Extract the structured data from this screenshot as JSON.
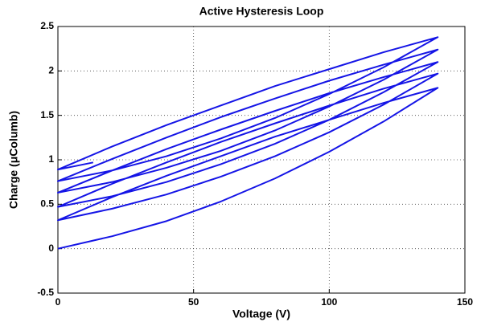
{
  "chart_data": {
    "type": "line",
    "title": "Active Hysteresis Loop",
    "x_label": "Voltage (V)",
    "y_label": "Charge (μColumb)",
    "x": [
      0,
      20,
      40,
      60,
      80,
      100,
      120,
      140,
      120,
      100,
      80,
      60,
      40,
      20,
      0,
      20,
      40,
      60,
      80,
      100,
      120,
      140,
      120,
      100,
      80,
      60,
      40,
      20,
      0,
      20,
      40,
      60,
      80,
      100,
      120,
      140,
      120,
      100,
      80,
      60,
      40,
      20,
      0,
      20,
      40,
      60,
      80,
      100,
      120,
      140,
      120,
      100,
      80,
      60,
      40,
      20,
      0,
      20,
      40,
      60,
      80,
      100,
      120,
      140,
      120,
      100,
      80,
      60,
      40,
      20,
      0,
      13
    ],
    "series": [
      {
        "name": "Charge",
        "color": "#1414e6",
        "values": [
          0,
          0.14,
          0.31,
          0.53,
          0.79,
          1.09,
          1.43,
          1.81,
          1.64,
          1.45,
          1.26,
          1.04,
          0.82,
          0.58,
          0.32,
          0.45,
          0.61,
          0.81,
          1.04,
          1.31,
          1.62,
          1.97,
          1.8,
          1.61,
          1.41,
          1.2,
          0.97,
          0.73,
          0.47,
          0.59,
          0.75,
          0.95,
          1.18,
          1.45,
          1.76,
          2.1,
          1.93,
          1.75,
          1.55,
          1.34,
          1.12,
          0.88,
          0.63,
          0.75,
          0.91,
          1.1,
          1.33,
          1.6,
          1.9,
          2.24,
          2.07,
          1.89,
          1.69,
          1.48,
          1.25,
          1.01,
          0.76,
          0.88,
          1.04,
          1.24,
          1.47,
          1.74,
          2.04,
          2.38,
          2.21,
          2.02,
          1.83,
          1.61,
          1.39,
          1.15,
          0.89,
          0.97
        ]
      }
    ],
    "xlim": [
      0,
      150
    ],
    "xticks": [
      0,
      50,
      100,
      150
    ],
    "ylim": [
      -0.5,
      2.5
    ],
    "yticks": [
      -0.5,
      0,
      0.5,
      1,
      1.5,
      2,
      2.5
    ],
    "grid": true
  }
}
